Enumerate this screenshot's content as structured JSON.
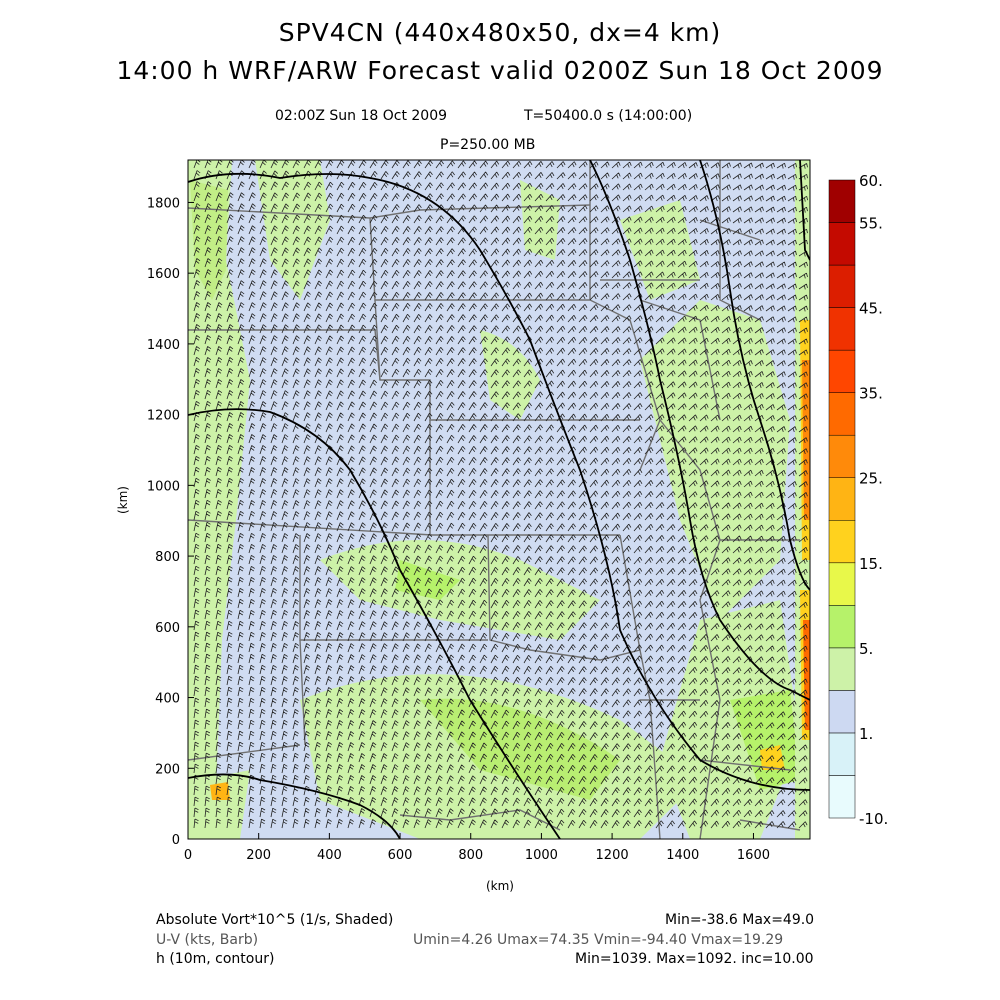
{
  "title": {
    "line1": "SPV4CN (440x480x50, dx=4 km)",
    "line2": "14:00 h WRF/ARW Forecast valid 0200Z Sun 18 Oct 2009"
  },
  "subtitle": {
    "valid_time": "02:00Z Sun 18 Oct 2009",
    "model_time": "T=50400.0 s (14:00:00)",
    "level": "P=250.00 MB"
  },
  "axes": {
    "x_label": "(km)",
    "y_label": "(km)",
    "x_ticks": [
      "0",
      "200",
      "400",
      "600",
      "800",
      "1000",
      "1200",
      "1400",
      "1600"
    ],
    "y_ticks": [
      "0",
      "200",
      "400",
      "600",
      "800",
      "1000",
      "1200",
      "1400",
      "1600",
      "1800"
    ],
    "x_range": [
      0,
      1760
    ],
    "y_range": [
      0,
      1920
    ]
  },
  "colorbar": {
    "labels": [
      "60.",
      "55.",
      "45.",
      "35.",
      "25.",
      "15.",
      "5.",
      "1.",
      "-10."
    ],
    "colors": [
      "#e8fbfd",
      "#d8f2f8",
      "#cdd9f2",
      "#cdf2a8",
      "#b6f26a",
      "#e8f84a",
      "#ffd21e",
      "#ffb414",
      "#ff8a0a",
      "#ff6a00",
      "#ff4600",
      "#f03200",
      "#dc1e00",
      "#c40a00",
      "#a00000"
    ]
  },
  "legend": {
    "field1": "Absolute Vort*10^5 (1/s, Shaded)",
    "field1_stats": "Min=-38.6 Max=49.0",
    "field2": "U-V (kts, Barb)",
    "field2_stats": "Umin=4.26 Umax=74.35 Vmin=-94.40 Vmax=19.29",
    "field3": "h (10m, contour)",
    "field3_stats": "Min=1039. Max=1092. inc=10.00"
  }
}
